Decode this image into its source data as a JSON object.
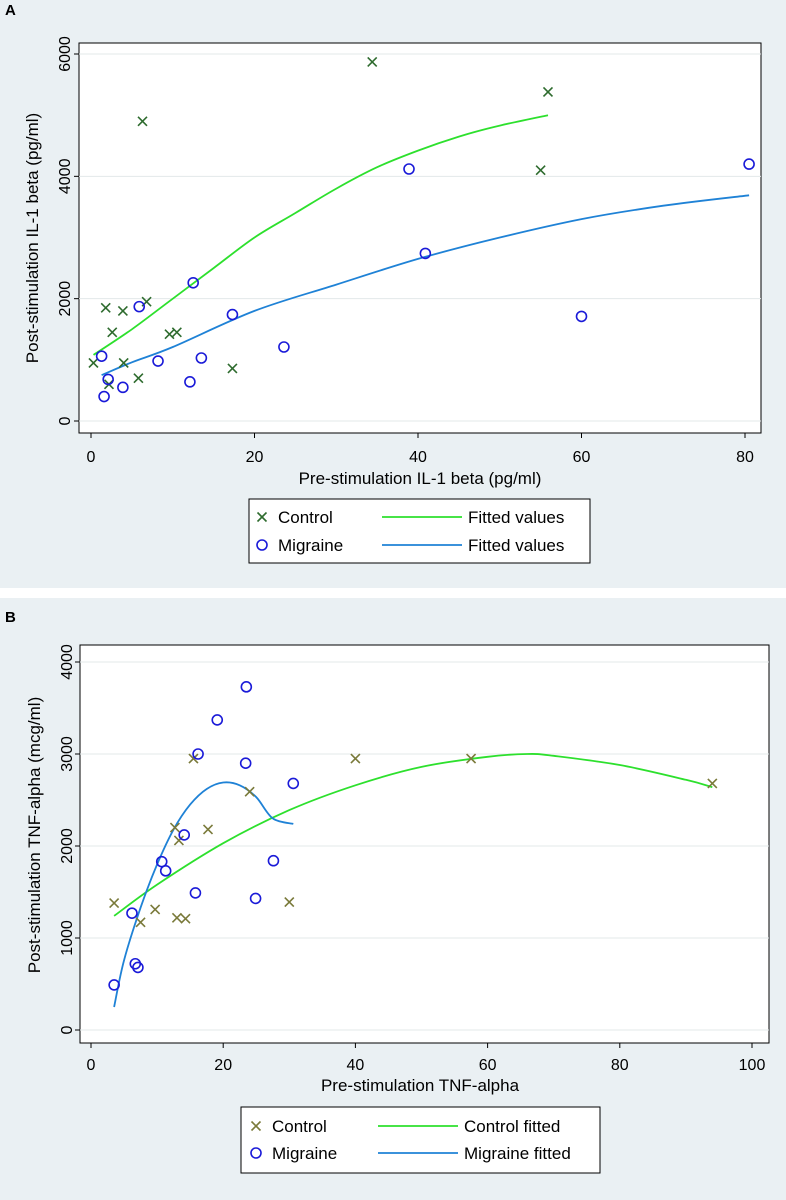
{
  "chart_data": [
    {
      "panel": "A",
      "type": "scatter",
      "xlabel": "Pre-stimulation IL-1 beta (pg/ml)",
      "ylabel": "Post-stimulation IL-1 beta (pg/ml)",
      "xlim": [
        0,
        80
      ],
      "ylim": [
        0,
        6000
      ],
      "x_ticks": [
        0,
        20,
        40,
        60,
        80
      ],
      "y_ticks": [
        0,
        2000,
        4000,
        6000
      ],
      "colors": {
        "control": "#2e6b2e",
        "migraine": "#1a1ad8",
        "control_fit": "#2de02d",
        "migraine_fit": "#1f82d6"
      },
      "legend": [
        {
          "label": "Control",
          "symbol": "x",
          "role": "control"
        },
        {
          "label": "Fitted values",
          "symbol": "line",
          "role": "control_fit"
        },
        {
          "label": "Migraine",
          "symbol": "o",
          "role": "migraine"
        },
        {
          "label": "Fitted values",
          "symbol": "line",
          "role": "migraine_fit"
        }
      ],
      "series": [
        {
          "name": "Control",
          "marker": "x",
          "role": "control",
          "x": [
            0.3,
            1.8,
            2.2,
            2.6,
            3.9,
            4.0,
            5.8,
            6.3,
            6.8,
            9.6,
            10.5,
            17.3,
            34.4,
            55.0,
            55.9
          ],
          "y": [
            950,
            1850,
            600,
            1450,
            1800,
            950,
            700,
            4900,
            1950,
            1420,
            1450,
            860,
            5870,
            4100,
            5380
          ]
        },
        {
          "name": "Migraine",
          "marker": "o",
          "role": "migraine",
          "x": [
            1.3,
            1.6,
            2.1,
            3.9,
            5.9,
            8.2,
            12.1,
            12.5,
            13.5,
            17.3,
            23.6,
            38.9,
            40.9,
            60.0,
            80.5
          ],
          "y": [
            1060,
            400,
            680,
            550,
            1870,
            980,
            640,
            2260,
            1030,
            1740,
            1210,
            4120,
            2740,
            1710,
            4200
          ]
        },
        {
          "name": "Fitted values",
          "type": "line",
          "role": "control_fit",
          "x": [
            0.3,
            5,
            10,
            15,
            20,
            25,
            30,
            35,
            40,
            45,
            50,
            55.9
          ],
          "y": [
            1080,
            1500,
            2000,
            2500,
            3000,
            3400,
            3800,
            4150,
            4420,
            4650,
            4830,
            5000
          ]
        },
        {
          "name": "Fitted values",
          "type": "line",
          "role": "migraine_fit",
          "x": [
            1.3,
            5,
            10,
            20,
            30,
            40,
            50,
            60,
            70,
            80.5
          ],
          "y": [
            750,
            960,
            1210,
            1800,
            2230,
            2650,
            3000,
            3300,
            3520,
            3690
          ]
        }
      ]
    },
    {
      "panel": "B",
      "type": "scatter",
      "xlabel": "Pre-stimulation TNF-alpha",
      "ylabel": "Post-stimulation TNF-alpha (mcg/ml)",
      "xlim": [
        0,
        100
      ],
      "ylim": [
        0,
        4000
      ],
      "x_ticks": [
        0,
        20,
        40,
        60,
        80,
        100
      ],
      "y_ticks": [
        0,
        1000,
        2000,
        3000,
        4000
      ],
      "colors": {
        "control": "#7a7a3a",
        "migraine": "#1a1ad8",
        "control_fit": "#2de02d",
        "migraine_fit": "#1f82d6"
      },
      "legend": [
        {
          "label": "Control",
          "symbol": "x",
          "role": "control"
        },
        {
          "label": "Control fitted",
          "symbol": "line",
          "role": "control_fit"
        },
        {
          "label": "Migraine",
          "symbol": "o",
          "role": "migraine"
        },
        {
          "label": "Migraine fitted",
          "symbol": "line",
          "role": "migraine_fit"
        }
      ],
      "series": [
        {
          "name": "Control",
          "marker": "x",
          "role": "control",
          "x": [
            3.5,
            7.5,
            9.7,
            12.7,
            13.0,
            13.3,
            14.3,
            15.5,
            17.7,
            24.0,
            30.0,
            40.0,
            57.5,
            94.0
          ],
          "y": [
            1380,
            1170,
            1310,
            2200,
            1220,
            2060,
            1210,
            2950,
            2180,
            2590,
            1390,
            2950,
            2950,
            2680
          ]
        },
        {
          "name": "Migraine",
          "marker": "o",
          "role": "migraine",
          "x": [
            3.5,
            6.2,
            6.7,
            7.1,
            10.7,
            11.3,
            14.1,
            15.8,
            16.2,
            19.1,
            23.4,
            23.5,
            24.9,
            27.6,
            30.6
          ],
          "y": [
            490,
            1270,
            720,
            680,
            1830,
            1730,
            2120,
            1490,
            3000,
            3370,
            2900,
            3730,
            1430,
            1840,
            2680
          ]
        },
        {
          "name": "Control fitted",
          "type": "line",
          "role": "control_fit",
          "x": [
            3.5,
            10,
            20,
            30,
            40,
            50,
            60,
            66,
            70,
            80,
            90,
            94
          ],
          "y": [
            1240,
            1580,
            2030,
            2390,
            2660,
            2860,
            2970,
            3000,
            2980,
            2880,
            2720,
            2640
          ]
        },
        {
          "name": "Migraine fitted",
          "type": "line",
          "role": "migraine_fit",
          "x": [
            3.5,
            5,
            7.5,
            10,
            12.5,
            15,
            17.5,
            20,
            22.5,
            25,
            27.5,
            30.6
          ],
          "y": [
            250,
            760,
            1330,
            1800,
            2180,
            2450,
            2620,
            2690,
            2660,
            2530,
            2300,
            2240
          ]
        }
      ]
    }
  ]
}
